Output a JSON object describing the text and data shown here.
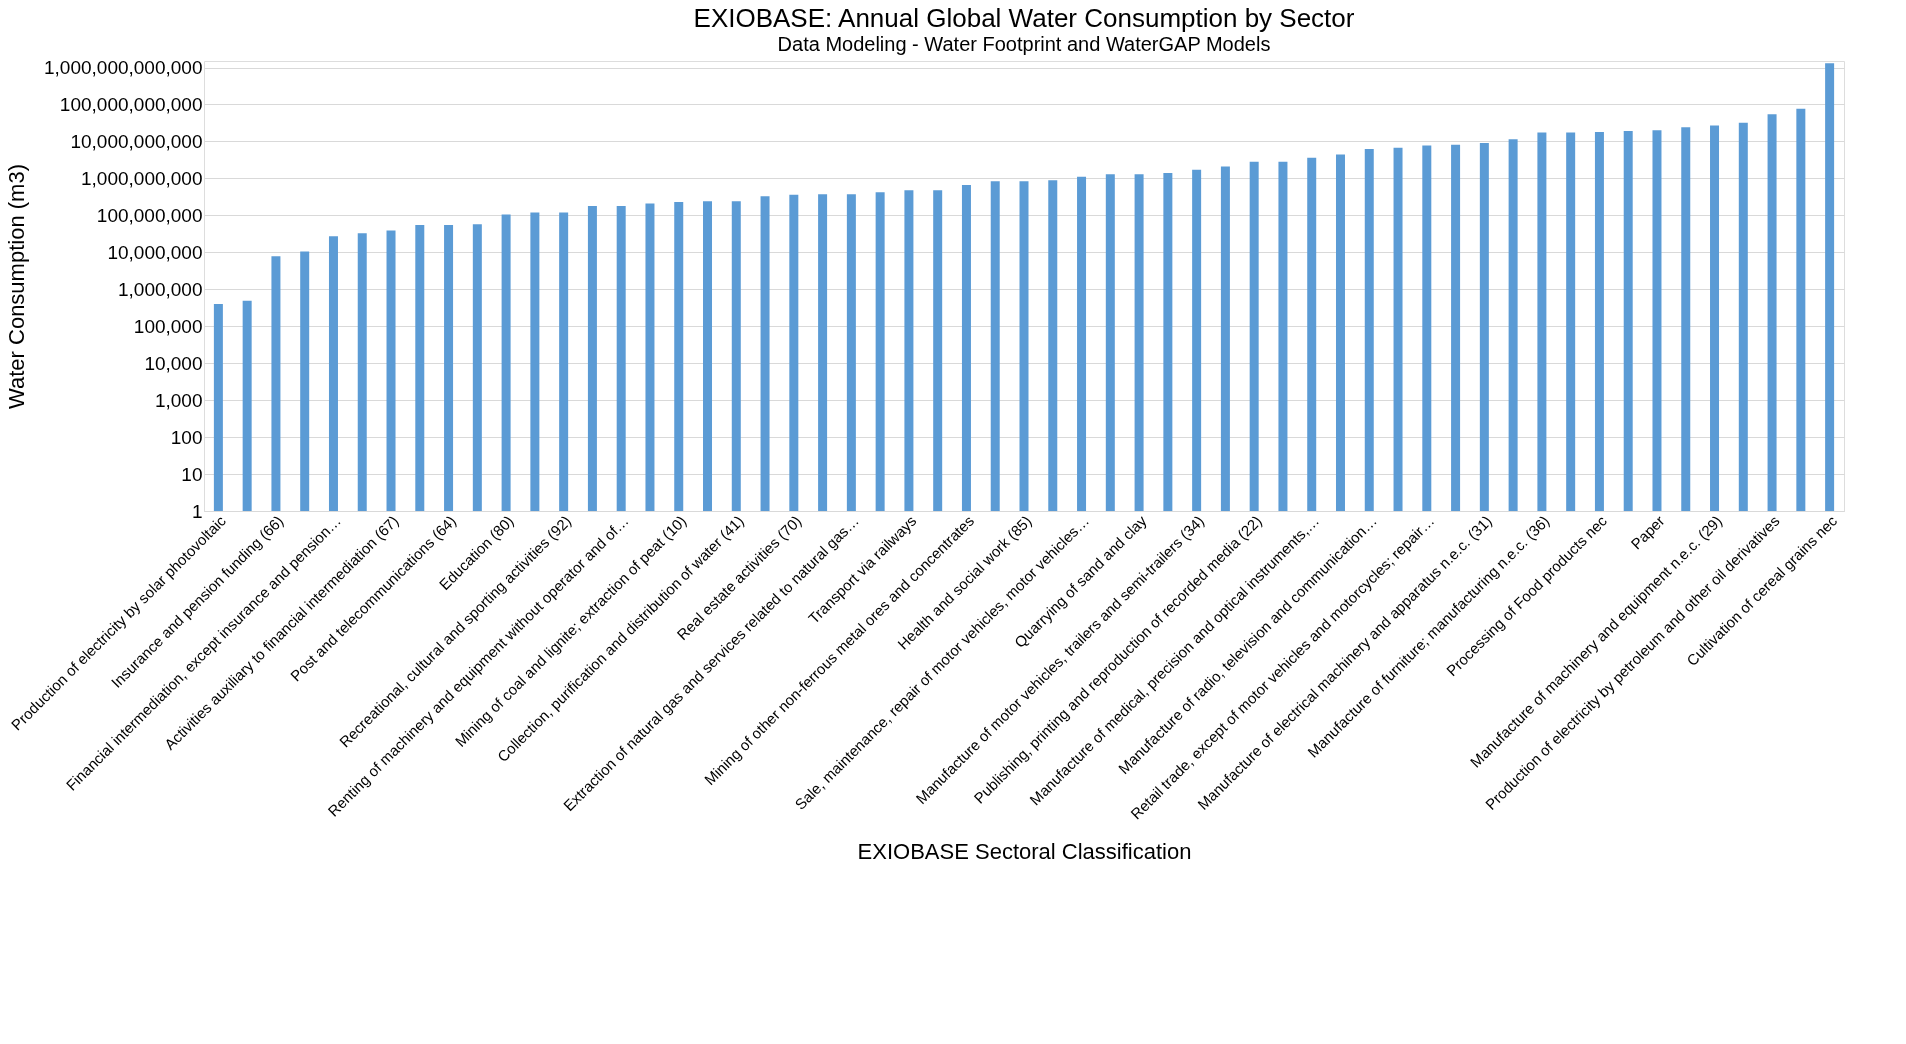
{
  "chart_data": {
    "type": "bar",
    "title": "EXIOBASE: Annual Global Water Consumption by Sector",
    "subtitle": "Data Modeling - Water Footprint and WaterGAP Models",
    "xlabel": "EXIOBASE Sectoral Classification",
    "ylabel": "Water Consumption  (m3)",
    "categories": [
      "Production of electricity by solar photovoltaic",
      null,
      "Insurance and pension funding (66)",
      null,
      "Financial intermediation, except insurance and pension…",
      null,
      "Activities auxiliary to financial intermediation (67)",
      null,
      "Post and telecommunications (64)",
      null,
      "Education (80)",
      null,
      "Recreational, cultural and sporting activities (92)",
      null,
      "Renting of machinery and equipment without operator and of…",
      null,
      "Mining of coal and lignite; extraction of peat (10)",
      null,
      "Collection, purification and distribution of water (41)",
      null,
      "Real estate activities (70)",
      null,
      "Extraction of natural gas and services related to natural gas…",
      null,
      "Transport via railways",
      null,
      "Mining of other non-ferrous metal ores and concentrates",
      null,
      "Health and social work (85)",
      null,
      "Sale, maintenance, repair of motor vehicles, motor vehicles…",
      null,
      "Quarrying of sand and clay",
      null,
      "Manufacture of motor vehicles, trailers and semi-trailers (34)",
      null,
      "Publishing, printing and reproduction of recorded media (22)",
      null,
      "Manufacture of medical, precision and optical instruments,…",
      null,
      "Manufacture of radio, television and communication…",
      null,
      "Retail trade, except of motor vehicles and motorcycles; repair…",
      null,
      "Manufacture of electrical machinery and apparatus n.e.c. (31)",
      null,
      "Manufacture of furniture; manufacturing n.e.c. (36)",
      null,
      "Processing of Food products nec",
      null,
      "Paper",
      null,
      "Manufacture of machinery and equipment n.e.c. (29)",
      null,
      "Production of electricity by petroleum and other oil derivatives",
      null,
      "Cultivation of cereal grains nec"
    ],
    "values": [
      400000,
      490000,
      7800000,
      10500000,
      27000000,
      33000000,
      39000000,
      55000000,
      55000000,
      57000000,
      105000000,
      120000000,
      120000000,
      180000000,
      180000000,
      210000000,
      230000000,
      240000000,
      240000000,
      330000000,
      360000000,
      370000000,
      370000000,
      420000000,
      480000000,
      480000000,
      660000000,
      830000000,
      830000000,
      890000000,
      1100000000,
      1300000000,
      1300000000,
      1400000000,
      1700000000,
      2100000000,
      2800000000,
      2800000000,
      3600000000,
      4400000000,
      6200000000,
      6700000000,
      7700000000,
      8100000000,
      9100000000,
      11500000000,
      17500000000,
      17500000000,
      18000000000,
      19000000000,
      20000000000,
      24000000000,
      27000000000,
      32000000000,
      54000000000,
      76000000000,
      1300000000000
    ],
    "color": "#5b9bd5",
    "log": true,
    "ylim": [
      1,
      1500000000000
    ],
    "yticks": [
      {
        "value": 1,
        "label": "1"
      },
      {
        "value": 10,
        "label": "10"
      },
      {
        "value": 100,
        "label": "100"
      },
      {
        "value": 1000,
        "label": "1,000"
      },
      {
        "value": 10000,
        "label": "10,000"
      },
      {
        "value": 100000,
        "label": "100,000"
      },
      {
        "value": 1000000,
        "label": "1,000,000"
      },
      {
        "value": 10000000,
        "label": "10,000,000"
      },
      {
        "value": 100000000,
        "label": "100,000,000"
      },
      {
        "value": 1000000000,
        "label": "1,000,000,000"
      },
      {
        "value": 10000000000,
        "label": "10,000,000,000"
      },
      {
        "value": 100000000000,
        "label": "100,000,000,000"
      },
      {
        "value": 1000000000000,
        "label": "1,000,000,000,000"
      }
    ],
    "grid": "y"
  }
}
